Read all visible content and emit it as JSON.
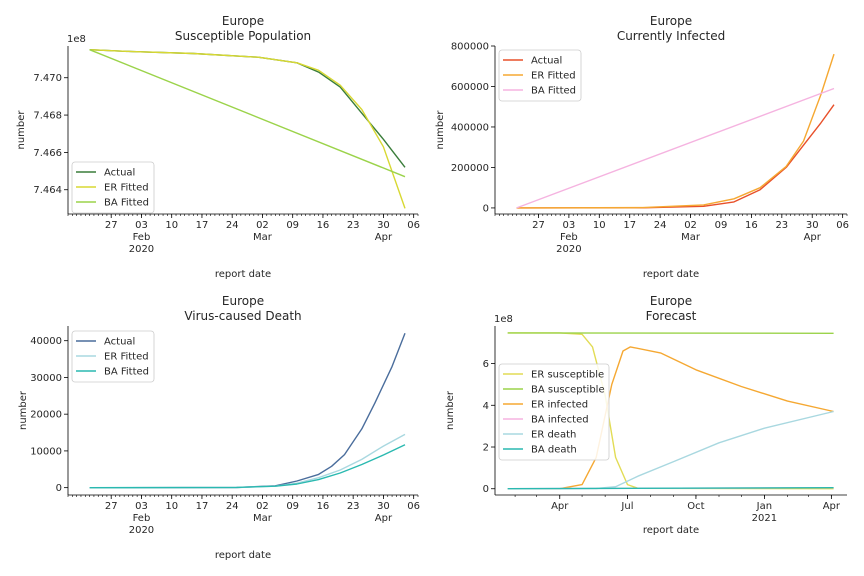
{
  "chart_data": [
    {
      "type": "line",
      "title": "Europe\nSusceptible Population",
      "xlabel": "report date",
      "ylabel": "number",
      "y_offset_label": "1e8",
      "x_tick_labels": [
        "27",
        "03\n\nFeb\n2020",
        "10",
        "17",
        "24",
        "02\n\nMar",
        "09",
        "16",
        "23",
        "30\n\nApr",
        "06"
      ],
      "y_tick_labels": [
        "7.464",
        "7.466",
        "7.468",
        "7.470"
      ],
      "ylim": [
        7.4627,
        7.4717
      ],
      "series": [
        {
          "name": "Actual",
          "color": "#3a7d3a",
          "x": [
            "2020-01-22",
            "2020-02-01",
            "2020-02-15",
            "2020-03-01",
            "2020-03-10",
            "2020-03-15",
            "2020-03-20",
            "2020-03-25",
            "2020-03-30",
            "2020-04-04"
          ],
          "y": [
            7.4715,
            7.4714,
            7.4713,
            7.4711,
            7.4708,
            7.4703,
            7.4695,
            7.4681,
            7.4667,
            7.4652
          ]
        },
        {
          "name": "ER Fitted",
          "color": "#d8d832",
          "x": [
            "2020-01-22",
            "2020-02-01",
            "2020-02-15",
            "2020-03-01",
            "2020-03-10",
            "2020-03-15",
            "2020-03-20",
            "2020-03-25",
            "2020-03-30",
            "2020-04-04"
          ],
          "y": [
            7.4715,
            7.4714,
            7.4713,
            7.4711,
            7.4708,
            7.4704,
            7.4696,
            7.4683,
            7.4663,
            7.463
          ]
        },
        {
          "name": "BA Fitted",
          "color": "#9bd34a",
          "x": [
            "2020-01-22",
            "2020-04-04"
          ],
          "y": [
            7.4715,
            7.4647
          ]
        }
      ],
      "legend": "lower-left"
    },
    {
      "type": "line",
      "title": "Europe\nCurrently Infected",
      "xlabel": "report date",
      "ylabel": "number",
      "x_tick_labels": [
        "27",
        "03\n\nFeb\n2020",
        "10",
        "17",
        "24",
        "02\n\nMar",
        "09",
        "16",
        "23",
        "30\n\nApr",
        "06"
      ],
      "y_tick_labels": [
        "0",
        "200000",
        "400000",
        "600000",
        "800000"
      ],
      "ylim": [
        -30000,
        800000
      ],
      "series": [
        {
          "name": "Actual",
          "color": "#e8502a",
          "x": [
            "2020-01-22",
            "2020-02-20",
            "2020-03-05",
            "2020-03-12",
            "2020-03-18",
            "2020-03-24",
            "2020-03-28",
            "2020-04-01",
            "2020-04-04"
          ],
          "y": [
            0,
            500,
            8000,
            30000,
            90000,
            200000,
            310000,
            420000,
            510000
          ]
        },
        {
          "name": "ER Fitted",
          "color": "#f5a832",
          "x": [
            "2020-01-22",
            "2020-02-20",
            "2020-03-05",
            "2020-03-12",
            "2020-03-18",
            "2020-03-24",
            "2020-03-28",
            "2020-04-01",
            "2020-04-04"
          ],
          "y": [
            0,
            1500,
            15000,
            45000,
            100000,
            205000,
            330000,
            560000,
            760000
          ]
        },
        {
          "name": "BA Fitted",
          "color": "#f5b3e0",
          "x": [
            "2020-01-22",
            "2020-04-04"
          ],
          "y": [
            0,
            590000
          ]
        }
      ],
      "legend": "upper-left"
    },
    {
      "type": "line",
      "title": "Europe\nVirus-caused Death",
      "xlabel": "report date",
      "ylabel": "number",
      "x_tick_labels": [
        "27",
        "03\n\nFeb\n2020",
        "10",
        "17",
        "24",
        "02\n\nMar",
        "09",
        "16",
        "23",
        "30\n\nApr",
        "06"
      ],
      "y_tick_labels": [
        "0",
        "10000",
        "20000",
        "30000",
        "40000"
      ],
      "ylim": [
        -2000,
        44000
      ],
      "series": [
        {
          "name": "Actual",
          "color": "#4a6d9c",
          "x": [
            "2020-01-22",
            "2020-02-25",
            "2020-03-05",
            "2020-03-10",
            "2020-03-15",
            "2020-03-18",
            "2020-03-21",
            "2020-03-25",
            "2020-03-28",
            "2020-04-01",
            "2020-04-04"
          ],
          "y": [
            0,
            50,
            500,
            1800,
            3600,
            5800,
            9000,
            16000,
            23000,
            33000,
            42000
          ]
        },
        {
          "name": "ER Fitted",
          "color": "#a9d8e0",
          "x": [
            "2020-01-22",
            "2020-02-25",
            "2020-03-05",
            "2020-03-10",
            "2020-03-15",
            "2020-03-20",
            "2020-03-25",
            "2020-03-30",
            "2020-04-04"
          ],
          "y": [
            0,
            50,
            400,
            1200,
            2700,
            4800,
            7700,
            11300,
            14500
          ]
        },
        {
          "name": "BA Fitted",
          "color": "#2ab9b0",
          "x": [
            "2020-01-22",
            "2020-02-25",
            "2020-03-05",
            "2020-03-10",
            "2020-03-15",
            "2020-03-20",
            "2020-03-25",
            "2020-03-30",
            "2020-04-04"
          ],
          "y": [
            0,
            80,
            400,
            1000,
            2200,
            4000,
            6300,
            8900,
            11700
          ]
        }
      ],
      "legend": "upper-left"
    },
    {
      "type": "line",
      "title": "Europe\nForecast",
      "xlabel": "report date",
      "ylabel": "number",
      "y_offset_label": "1e8",
      "x_tick_labels": [
        "Apr",
        "Jul",
        "Oct",
        "Jan\n2021",
        "Apr"
      ],
      "y_tick_labels": [
        "0",
        "2",
        "4",
        "6"
      ],
      "ylim": [
        -0.3,
        7.8
      ],
      "series": [
        {
          "name": "ER susceptible",
          "color": "#e2dc55",
          "x": [
            "2020-01-22",
            "2020-04-01",
            "2020-05-01",
            "2020-05-15",
            "2020-06-01",
            "2020-06-15",
            "2020-07-01",
            "2020-07-15",
            "2021-04-04"
          ],
          "y": [
            7.47,
            7.47,
            7.4,
            6.8,
            4.5,
            1.5,
            0.2,
            0.02,
            0.0
          ]
        },
        {
          "name": "BA susceptible",
          "color": "#9bd34a",
          "x": [
            "2020-01-22",
            "2021-04-04"
          ],
          "y": [
            7.47,
            7.45
          ]
        },
        {
          "name": "ER infected",
          "color": "#f5a832",
          "x": [
            "2020-01-22",
            "2020-04-01",
            "2020-05-01",
            "2020-05-20",
            "2020-06-10",
            "2020-06-25",
            "2020-07-05",
            "2020-08-15",
            "2020-10-01",
            "2020-12-01",
            "2021-02-01",
            "2021-04-04"
          ],
          "y": [
            0,
            0.0,
            0.2,
            1.5,
            5.0,
            6.6,
            6.8,
            6.5,
            5.7,
            4.9,
            4.2,
            3.7
          ]
        },
        {
          "name": "BA infected",
          "color": "#f5b3e0",
          "x": [
            "2020-01-22",
            "2021-04-04"
          ],
          "y": [
            0,
            0.05
          ]
        },
        {
          "name": "ER death",
          "color": "#a9d8e0",
          "x": [
            "2020-01-22",
            "2020-05-20",
            "2020-06-15",
            "2020-07-15",
            "2020-09-01",
            "2020-11-01",
            "2021-01-01",
            "2021-04-04"
          ],
          "y": [
            0,
            0.01,
            0.1,
            0.6,
            1.3,
            2.2,
            2.9,
            3.7
          ]
        },
        {
          "name": "BA death",
          "color": "#2ab9b0",
          "x": [
            "2020-01-22",
            "2021-04-04"
          ],
          "y": [
            0,
            0.05
          ]
        }
      ],
      "legend": "center-left"
    }
  ]
}
